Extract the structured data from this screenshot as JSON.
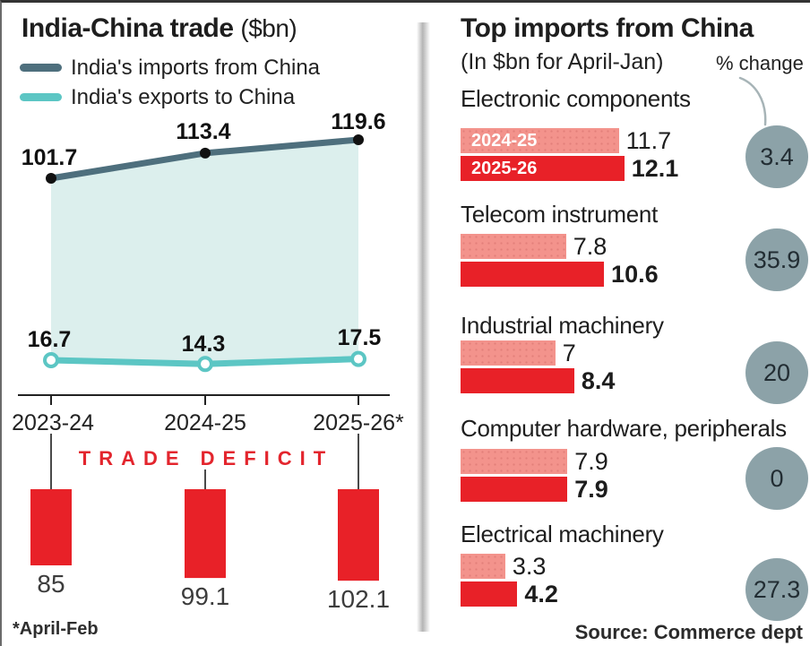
{
  "colors": {
    "imports_line": "#4e6f7d",
    "exports_line": "#5cc6c4",
    "area_fill": "#dcefed",
    "deficit_red": "#e82128",
    "prev_year_pink": "#f3938c",
    "pct_circle_gray": "#8ca2a8",
    "deficit_text_red": "#e3252d",
    "dark_text": "#1e1e1e"
  },
  "chart_data": [
    {
      "type": "line",
      "title": "India-China trade",
      "unit": "($bn)",
      "categories": [
        "2023-24",
        "2024-25",
        "2025-26*"
      ],
      "series": [
        {
          "name": "India's imports from China",
          "values": [
            101.7,
            113.4,
            119.6
          ]
        },
        {
          "name": "India's exports to China",
          "values": [
            16.7,
            14.3,
            17.5
          ]
        }
      ],
      "footnote": "*April-Feb",
      "legend_position": "top-left",
      "grid": false
    },
    {
      "type": "bar",
      "title": "TRADE DEFICIT",
      "categories": [
        "2023-24",
        "2024-25",
        "2025-26*"
      ],
      "values": [
        85,
        99.1,
        102.1
      ],
      "value_labels": [
        "85",
        "99.1",
        "102.1"
      ]
    },
    {
      "type": "bar",
      "title": "Top imports from China",
      "subtitle": "(In $bn for April-Jan)",
      "pct_change_label": "% change",
      "categories": [
        "Electronic components",
        "Telecom instrument",
        "Industrial machinery",
        "Computer hardware, peripherals",
        "Electrical machinery"
      ],
      "series": [
        {
          "name": "2024-25",
          "values": [
            11.7,
            7.8,
            7,
            7.9,
            3.3
          ]
        },
        {
          "name": "2025-26",
          "values": [
            12.1,
            10.6,
            8.4,
            7.9,
            4.2
          ]
        }
      ],
      "pct_change": [
        3.4,
        35.9,
        20,
        0,
        27.3
      ],
      "source": "Source: Commerce dept"
    }
  ]
}
